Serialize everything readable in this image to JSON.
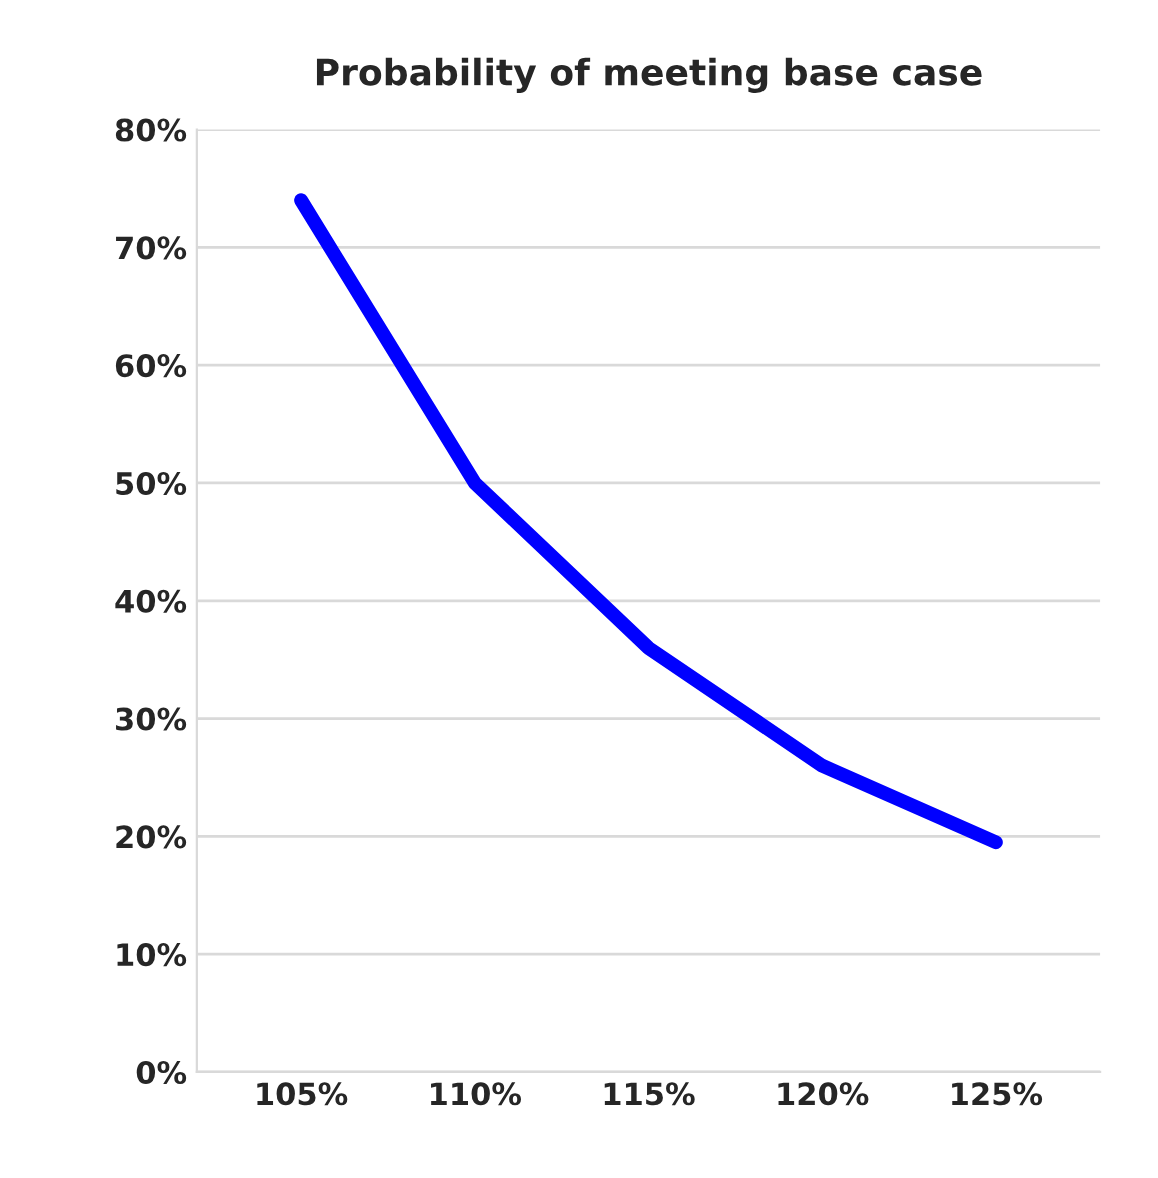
{
  "chart_data": {
    "type": "line",
    "title": "Probability of meeting base case",
    "categories": [
      "105%",
      "110%",
      "115%",
      "120%",
      "125%"
    ],
    "series": [
      {
        "color": "#0000ff",
        "values": [
          74,
          50,
          36,
          26,
          19.5
        ]
      }
    ],
    "ylim": [
      0,
      80
    ],
    "yticks": [
      {
        "value": 0,
        "label": "0%"
      },
      {
        "value": 10,
        "label": "10%"
      },
      {
        "value": 20,
        "label": "20%"
      },
      {
        "value": 30,
        "label": "30%"
      },
      {
        "value": 40,
        "label": "40%"
      },
      {
        "value": 50,
        "label": "50%"
      },
      {
        "value": 60,
        "label": "60%"
      },
      {
        "value": 70,
        "label": "70%"
      },
      {
        "value": 80,
        "label": "80%"
      }
    ],
    "grid": "y",
    "marker": "none",
    "line_style": "solid",
    "legend": false
  }
}
